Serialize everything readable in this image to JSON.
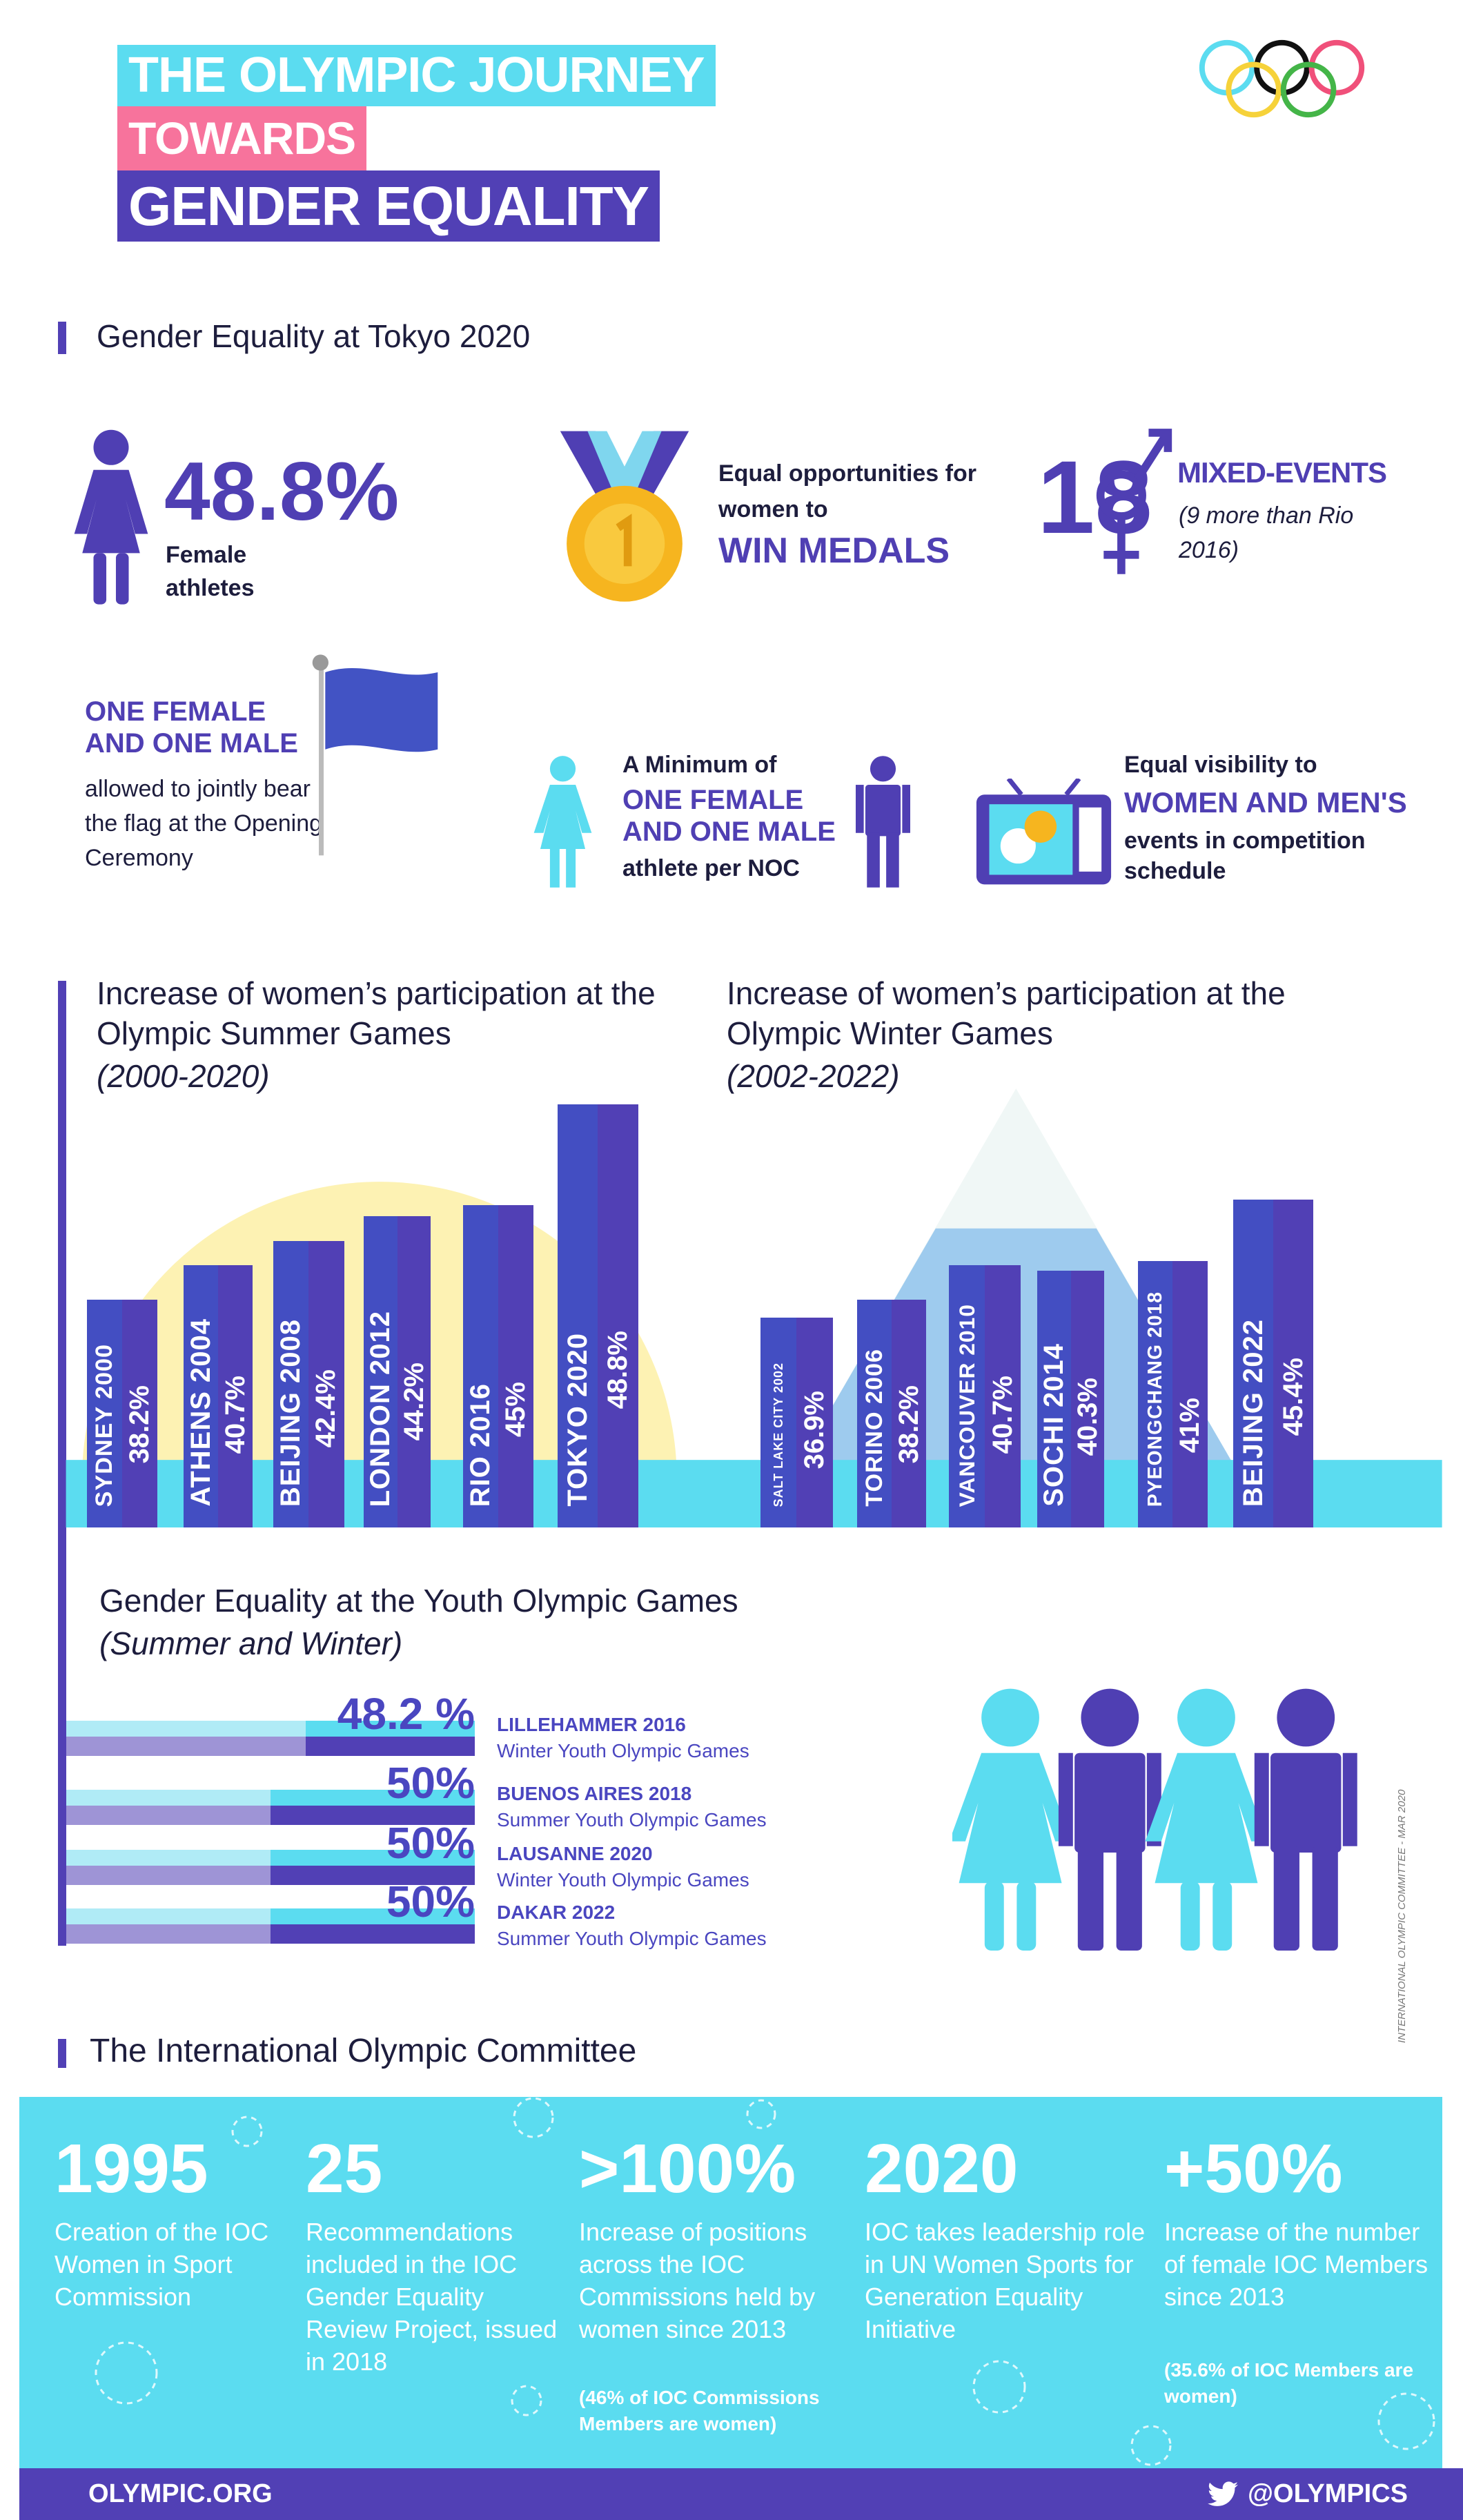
{
  "title": {
    "line1": "THE OLYMPIC JOURNEY",
    "line2": "TOWARDS",
    "line3": "GENDER EQUALITY"
  },
  "colors": {
    "cyan": "#5bdcf0",
    "pink": "#f7739c",
    "purple": "#5140b5",
    "blue": "#434ec2",
    "yellow": "#fdf2b3",
    "light_blue": "#9ecbee"
  },
  "tokyo": {
    "heading": "Gender Equality at Tokyo 2020",
    "female_pct": "48.8%",
    "female_label": "Female athletes",
    "medals_text": "Equal opportunities for women to",
    "medals_emph": "WIN MEDALS",
    "mixed_count": "18",
    "mixed_label": "MIXED-EVENTS",
    "mixed_note": "(9 more than Rio 2016)",
    "flag_emph": "ONE FEMALE AND ONE MALE",
    "flag_text": "allowed to jointly bear the flag at the Opening Ceremony",
    "noc_pre": "A Minimum of",
    "noc_emph": "ONE FEMALE AND ONE MALE",
    "noc_post": "athlete per NOC",
    "vis_pre": "Equal visibility to",
    "vis_emph": "WOMEN AND MEN'S",
    "vis_post": "events in competition schedule"
  },
  "chart_data": [
    {
      "type": "bar",
      "title": "Increase of women’s participation at the Olympic Summer Games",
      "subtitle": "(2000-2020)",
      "categories": [
        "SYDNEY 2000",
        "ATHENS 2004",
        "BEIJING 2008",
        "LONDON 2012",
        "RIO 2016",
        "TOKYO 2020"
      ],
      "values": [
        38.2,
        40.7,
        42.4,
        44.2,
        45,
        48.8
      ],
      "value_labels": [
        "38.2%",
        "40.7%",
        "42.4%",
        "44.2%",
        "45%",
        "48.8%"
      ],
      "unit": "%"
    },
    {
      "type": "bar",
      "title": "Increase of women’s participation at the Olympic Winter Games",
      "subtitle": "(2002-2022)",
      "categories": [
        "SALT LAKE CITY 2002",
        "TORINO 2006",
        "VANCOUVER 2010",
        "SOCHI 2014",
        "PYEONGCHANG 2018",
        "BEIJING 2022"
      ],
      "values": [
        36.9,
        38.2,
        40.7,
        40.3,
        41,
        45.4
      ],
      "value_labels": [
        "36.9%",
        "38.2%",
        "40.7%",
        "40.3%",
        "41%",
        "45.4%"
      ],
      "unit": "%"
    },
    {
      "type": "bar",
      "title": "Gender Equality at the Youth Olympic Games",
      "subtitle": "(Summer and Winter)",
      "categories": [
        "LILLEHAMMER 2016",
        "BUENOS AIRES 2018",
        "LAUSANNE 2020",
        "DAKAR 2022"
      ],
      "subcategories": [
        "Winter Youth Olympic Games",
        "Summer Youth Olympic Games",
        "Winter Youth Olympic Games",
        "Summer Youth Olympic Games"
      ],
      "values": [
        48.2,
        50,
        50,
        50
      ],
      "value_labels": [
        "48.2 %",
        "50%",
        "50%",
        "50%"
      ],
      "unit": "%"
    }
  ],
  "watermark": "INTERNATIONAL OLYMPIC COMMITTEE - MAR 2020",
  "ioc": {
    "heading": "The International Olympic Committee",
    "stats": [
      {
        "num": "1995",
        "desc": "Creation of the IOC Women in Sport Commission",
        "note": ""
      },
      {
        "num": "25",
        "desc": "Recommendations included in the IOC Gender Equality Review Project, issued in 2018",
        "note": ""
      },
      {
        "num": ">100%",
        "desc": "Increase of positions across the IOC Commissions held by women since 2013",
        "note": "(46% of IOC Commissions Members are women)"
      },
      {
        "num": "2020",
        "desc": "IOC takes leadership role in UN Women Sports for Generation Equality Initiative",
        "note": ""
      },
      {
        "num": "+50%",
        "desc": "Increase of the number of female IOC Members since 2013",
        "note": "(35.6% of IOC Members are women)"
      }
    ]
  },
  "footer": {
    "site": "OLYMPIC.ORG",
    "twitter": "@OLYMPICS",
    "icon": "twitter-bird-icon"
  }
}
